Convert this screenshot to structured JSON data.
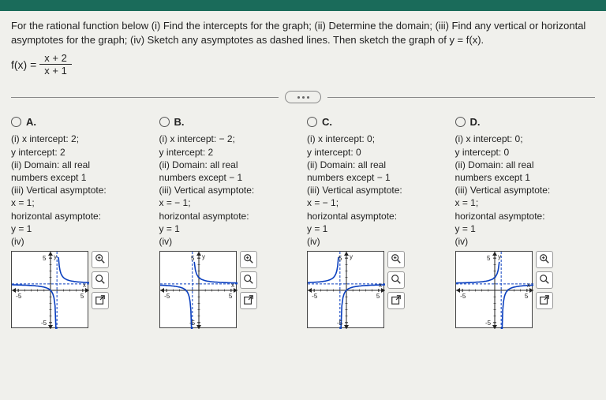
{
  "question": {
    "prompt": "For the rational function below (i) Find the intercepts for the graph; (ii) Determine the domain; (iii) Find any vertical or horizontal asymptotes for the graph; (iv) Sketch any asymptotes as dashed lines. Then sketch the graph of y = f(x).",
    "func_lhs": "f(x) =",
    "func_num": "x + 2",
    "func_den": "x + 1"
  },
  "options": [
    {
      "label": "A.",
      "lines": [
        "(i) x intercept: 2;",
        "y intercept: 2",
        "(ii) Domain: all real",
        "numbers except 1",
        "(iii) Vertical asymptote:",
        "x = 1;",
        "horizontal asymptote:",
        "y = 1",
        "(iv)"
      ],
      "graph": {
        "va": 1,
        "ha": 1,
        "branches": "std"
      }
    },
    {
      "label": "B.",
      "lines": [
        "(i) x intercept: − 2;",
        "y intercept: 2",
        "(ii) Domain: all real",
        "numbers except − 1",
        "(iii) Vertical asymptote:",
        "x = − 1;",
        "horizontal asymptote:",
        "y = 1",
        "(iv)"
      ],
      "graph": {
        "va": -1,
        "ha": 1,
        "branches": "std"
      }
    },
    {
      "label": "C.",
      "lines": [
        "(i) x intercept: 0;",
        "y intercept: 0",
        "(ii) Domain: all real",
        "numbers except − 1",
        "(iii) Vertical asymptote:",
        "x = − 1;",
        "horizontal asymptote:",
        "y = 1",
        "(iv)"
      ],
      "graph": {
        "va": -1,
        "ha": 1,
        "branches": "flip"
      }
    },
    {
      "label": "D.",
      "lines": [
        "(i) x intercept: 0;",
        "y intercept: 0",
        "(ii) Domain: all real",
        "numbers except 1",
        "(iii) Vertical asymptote:",
        "x = 1;",
        "horizontal asymptote:",
        "y = 1",
        "(iv)"
      ],
      "graph": {
        "va": 1,
        "ha": 1,
        "branches": "flip"
      }
    }
  ],
  "style": {
    "curve_color": "#0a3fbf",
    "asymptote_color": "#0a3fbf",
    "axis_color": "#222",
    "range": 6,
    "tick_marks": [
      -5,
      5
    ],
    "y_label": "y",
    "x_label": "x",
    "y_top_tick": "5",
    "y_bot_tick": "-5"
  }
}
